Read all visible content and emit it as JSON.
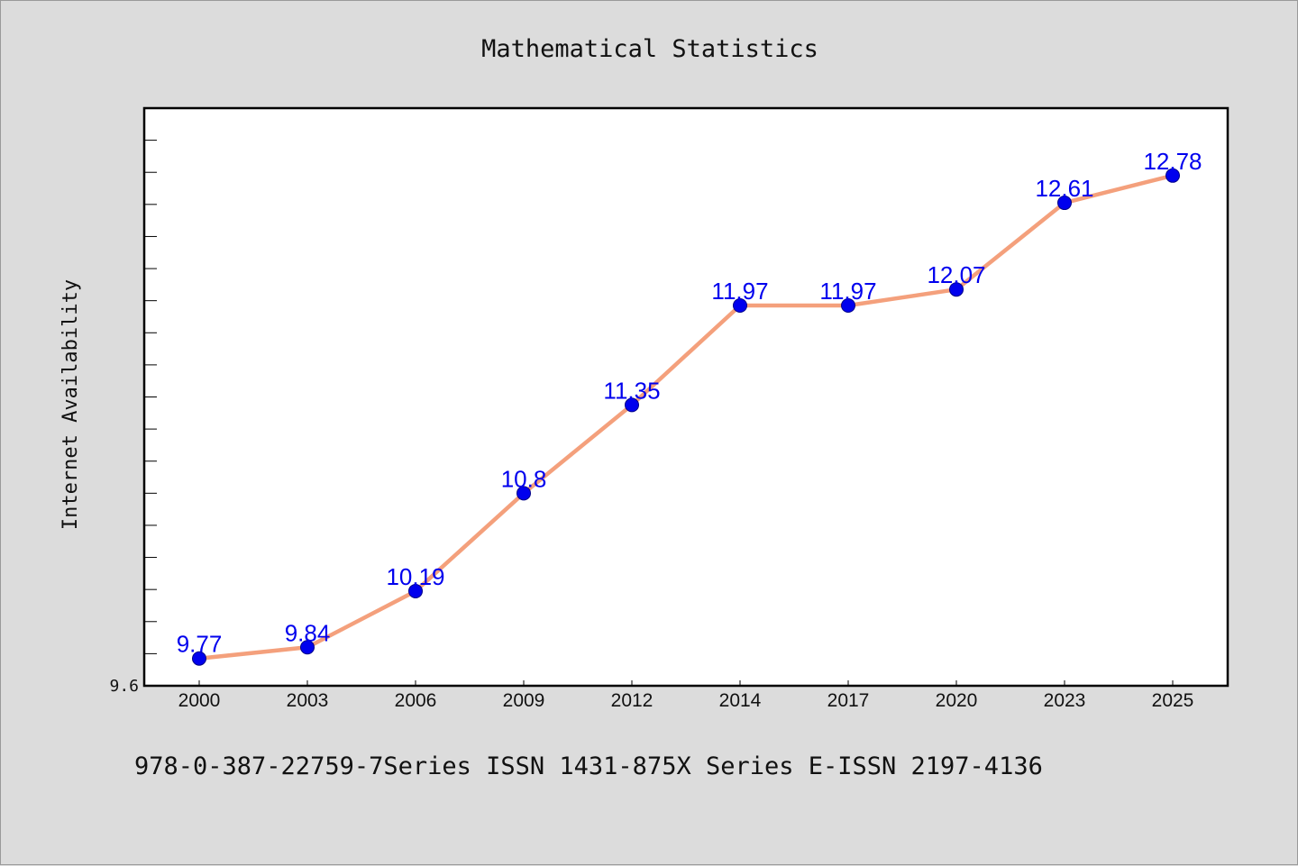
{
  "chart_data": {
    "type": "line",
    "title": "Mathematical Statistics",
    "xlabel": "",
    "ylabel": "Internet Availability",
    "categories": [
      "2000",
      "2003",
      "2006",
      "2009",
      "2012",
      "2014",
      "2017",
      "2020",
      "2023",
      "2025"
    ],
    "series": [
      {
        "values": [
          9.77,
          9.84,
          10.19,
          10.8,
          11.35,
          11.97,
          11.97,
          12.07,
          12.61,
          12.78
        ],
        "line_color": "#f4a07c",
        "marker_color": "#0000ee"
      }
    ],
    "data_labels": [
      "9.77",
      "9.84",
      "10.19",
      "10.8",
      "11.35",
      "11.97",
      "11.97",
      "12.07",
      "12.61",
      "12.78"
    ],
    "y_tick_labels": [
      "9.6"
    ],
    "ylim": [
      9.6,
      13.2
    ],
    "grid": false,
    "legend": "none",
    "footer": "978-0-387-22759-7Series ISSN 1431-875X Series E-ISSN 2197-4136"
  }
}
